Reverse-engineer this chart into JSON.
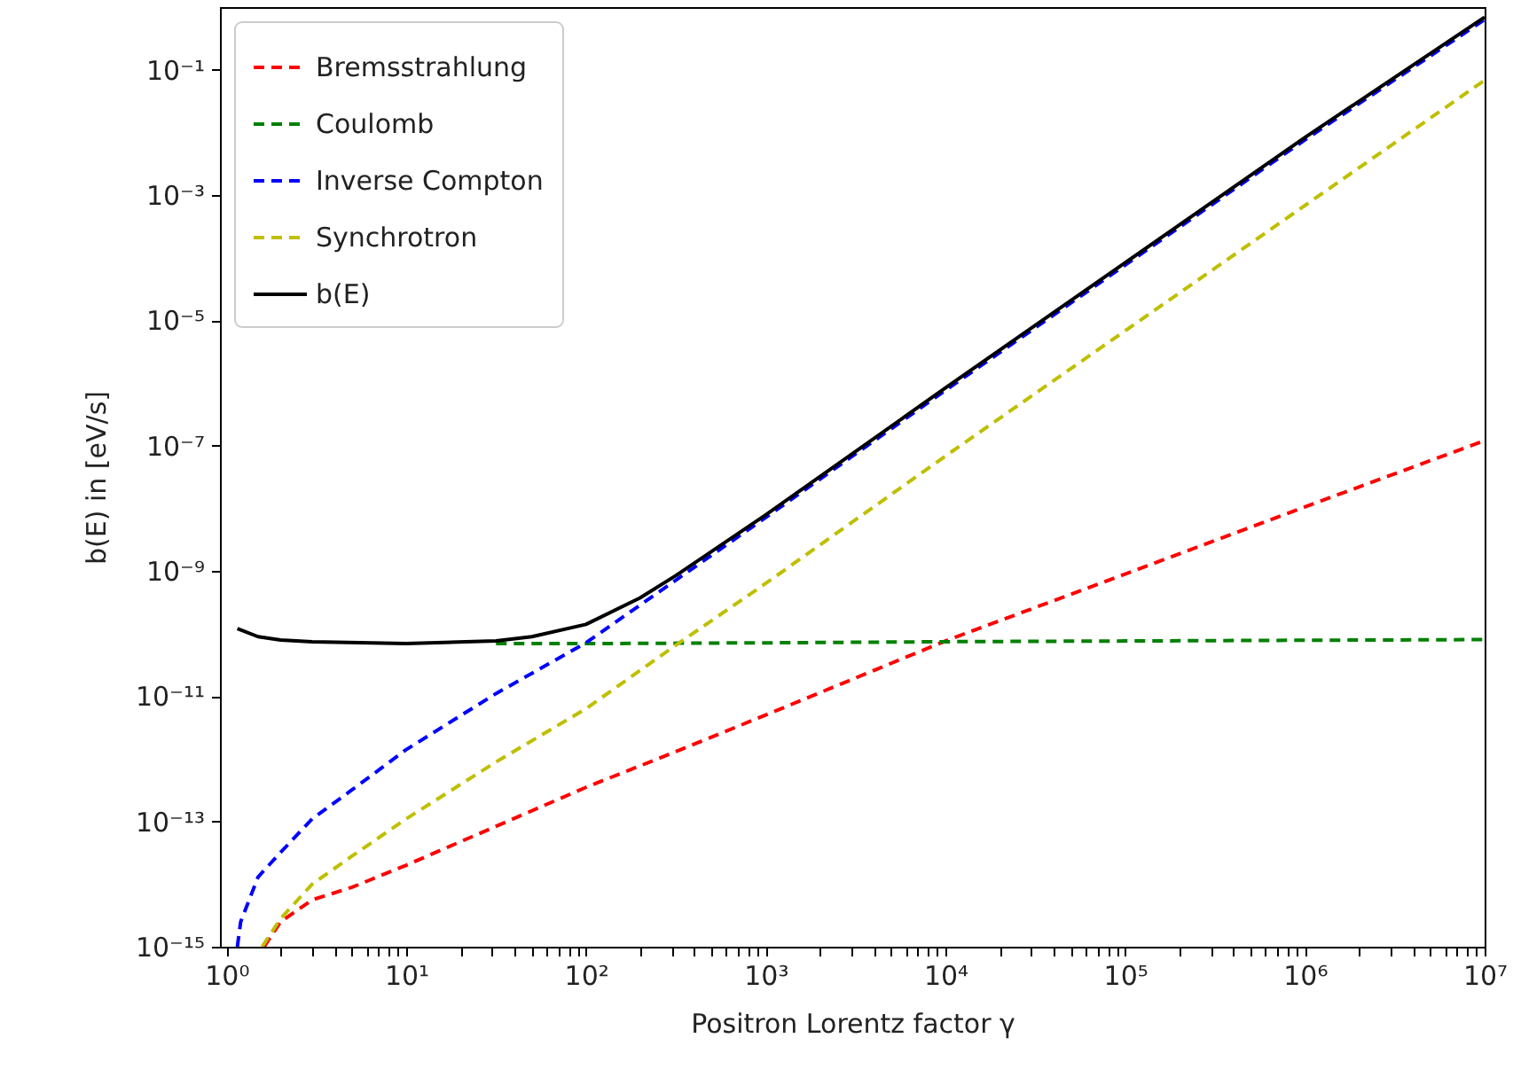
{
  "chart_data": {
    "type": "line",
    "xlabel": "Positron Lorentz factor γ",
    "ylabel": "b(E) in [eV/s]",
    "log": "xy",
    "grid": false,
    "legend": "top left",
    "xlim": [
      0.92,
      10000000
    ],
    "ylim": [
      1e-15,
      1
    ],
    "xticks": [
      {
        "value": 1,
        "label": "10⁰"
      },
      {
        "value": 10,
        "label": "10¹"
      },
      {
        "value": 100,
        "label": "10²"
      },
      {
        "value": 1000,
        "label": "10³"
      },
      {
        "value": 10000,
        "label": "10⁴"
      },
      {
        "value": 100000,
        "label": "10⁵"
      },
      {
        "value": 1000000,
        "label": "10⁶"
      },
      {
        "value": 10000000,
        "label": "10⁷"
      },
      {
        "value": 2,
        "label": null
      },
      {
        "value": 3,
        "label": null
      },
      {
        "value": 4,
        "label": null
      },
      {
        "value": 5,
        "label": null
      },
      {
        "value": 6,
        "label": null
      },
      {
        "value": 7,
        "label": null
      },
      {
        "value": 8,
        "label": null
      },
      {
        "value": 9,
        "label": null
      },
      {
        "value": 20,
        "label": null
      },
      {
        "value": 30,
        "label": null
      },
      {
        "value": 40,
        "label": null
      },
      {
        "value": 50,
        "label": null
      },
      {
        "value": 60,
        "label": null
      },
      {
        "value": 70,
        "label": null
      },
      {
        "value": 80,
        "label": null
      },
      {
        "value": 90,
        "label": null
      },
      {
        "value": 200,
        "label": null
      },
      {
        "value": 300,
        "label": null
      },
      {
        "value": 400,
        "label": null
      },
      {
        "value": 500,
        "label": null
      },
      {
        "value": 600,
        "label": null
      },
      {
        "value": 700,
        "label": null
      },
      {
        "value": 800,
        "label": null
      },
      {
        "value": 900,
        "label": null
      },
      {
        "value": 2000,
        "label": null
      },
      {
        "value": 3000,
        "label": null
      },
      {
        "value": 4000,
        "label": null
      },
      {
        "value": 5000,
        "label": null
      },
      {
        "value": 6000,
        "label": null
      },
      {
        "value": 7000,
        "label": null
      },
      {
        "value": 8000,
        "label": null
      },
      {
        "value": 9000,
        "label": null
      },
      {
        "value": 20000,
        "label": null
      },
      {
        "value": 30000,
        "label": null
      },
      {
        "value": 40000,
        "label": null
      },
      {
        "value": 50000,
        "label": null
      },
      {
        "value": 60000,
        "label": null
      },
      {
        "value": 70000,
        "label": null
      },
      {
        "value": 80000,
        "label": null
      },
      {
        "value": 90000,
        "label": null
      },
      {
        "value": 200000,
        "label": null
      },
      {
        "value": 300000,
        "label": null
      },
      {
        "value": 400000,
        "label": null
      },
      {
        "value": 500000,
        "label": null
      },
      {
        "value": 600000,
        "label": null
      },
      {
        "value": 700000,
        "label": null
      },
      {
        "value": 800000,
        "label": null
      },
      {
        "value": 900000,
        "label": null
      },
      {
        "value": 2000000,
        "label": null
      },
      {
        "value": 3000000,
        "label": null
      },
      {
        "value": 4000000,
        "label": null
      },
      {
        "value": 5000000,
        "label": null
      },
      {
        "value": 6000000,
        "label": null
      },
      {
        "value": 7000000,
        "label": null
      },
      {
        "value": 8000000,
        "label": null
      },
      {
        "value": 9000000,
        "label": null
      }
    ],
    "yticks": [
      {
        "value": 1e-15,
        "label": "10⁻¹⁵"
      },
      {
        "value": 1e-13,
        "label": "10⁻¹³"
      },
      {
        "value": 1e-11,
        "label": "10⁻¹¹"
      },
      {
        "value": 1e-09,
        "label": "10⁻⁹"
      },
      {
        "value": 1e-07,
        "label": "10⁻⁷"
      },
      {
        "value": 1e-05,
        "label": "10⁻⁵"
      },
      {
        "value": 0.001,
        "label": "10⁻³"
      },
      {
        "value": 0.1,
        "label": "10⁻¹"
      }
    ],
    "series": [
      {
        "name": "Bremsstrahlung",
        "color": "#ff0000",
        "line_style": "dashed",
        "x": [
          1.62,
          2,
          3,
          5,
          10,
          100,
          316,
          1000,
          10000,
          100000,
          1000000,
          10000000
        ],
        "values": [
          1e-15,
          2.5e-15,
          5.6e-15,
          8.9e-15,
          2e-14,
          3.5e-13,
          1.3e-12,
          5e-12,
          7.6e-11,
          8.9e-10,
          1.05e-08,
          1.2e-07
        ]
      },
      {
        "name": "Coulomb",
        "color": "#008000",
        "line_style": "dashed",
        "x": [
          31.6,
          100,
          1000,
          10000,
          100000,
          1000000,
          10000000
        ],
        "values": [
          6.9e-11,
          6.9e-11,
          7.1e-11,
          7.4e-11,
          7.6e-11,
          7.8e-11,
          8e-11
        ]
      },
      {
        "name": "Inverse Compton",
        "color": "#0000ff",
        "line_style": "dashed",
        "x": [
          1.15,
          1.2,
          1.5,
          2,
          3,
          5,
          10,
          31.6,
          100,
          1000,
          10000,
          100000,
          1000000,
          10000000
        ],
        "values": [
          1e-15,
          2.5e-15,
          1.3e-14,
          3.2e-14,
          1.1e-13,
          3.2e-13,
          1.4e-12,
          1.1e-11,
          7.1e-11,
          7.1e-09,
          7.6e-07,
          7.6e-05,
          0.0076,
          0.63
        ]
      },
      {
        "name": "Synchrotron",
        "color": "#bfbf00",
        "line_style": "dashed",
        "x": [
          1.58,
          2,
          3,
          5,
          10,
          31.6,
          100,
          316,
          1000,
          10000,
          100000,
          1000000,
          10000000
        ],
        "values": [
          1e-15,
          2.8e-15,
          1e-14,
          2.8e-14,
          1.1e-13,
          8.9e-13,
          6.3e-12,
          6.5e-11,
          6.3e-10,
          6.8e-08,
          6.8e-06,
          0.00068,
          0.068
        ]
      },
      {
        "name": "b(E)",
        "color": "#000000",
        "line_style": "solid",
        "x": [
          1.15,
          1.5,
          2,
          3,
          10,
          31.6,
          50,
          100,
          200,
          316,
          1000,
          10000,
          100000,
          1000000,
          10000000
        ],
        "values": [
          1.2e-10,
          8.9e-11,
          7.9e-11,
          7.4e-11,
          6.9e-11,
          7.6e-11,
          8.9e-11,
          1.4e-10,
          3.7e-10,
          8.4e-10,
          7.8e-09,
          8.3e-07,
          8.3e-05,
          0.0083,
          0.69
        ]
      }
    ]
  }
}
